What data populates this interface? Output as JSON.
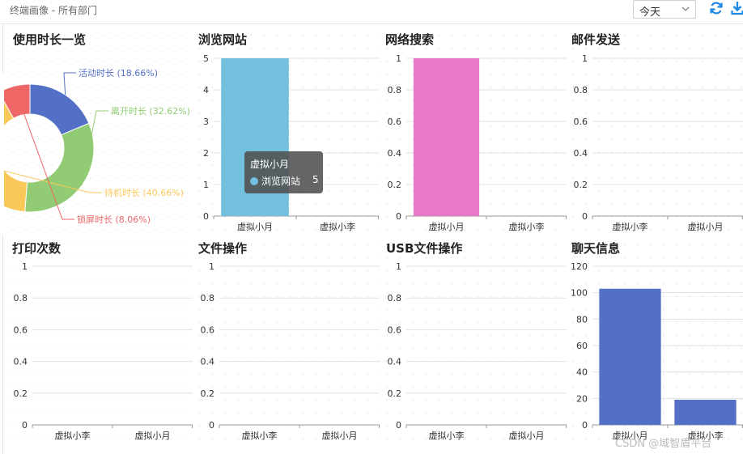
{
  "header": {
    "title": "终端画像 - 所有部门",
    "period_value": "今天"
  },
  "icons": {
    "chevron": "chevron-down-icon",
    "refresh": "refresh-icon",
    "download": "download-icon"
  },
  "colors": {
    "accent_icon": "#1e88e5",
    "blue": "#5470c6",
    "green": "#91cc75",
    "yellow": "#fac858",
    "red": "#ee6666",
    "lightblue": "#73c0de",
    "pink": "#e879c9",
    "grid": "#e0e0e0",
    "axis": "#999999"
  },
  "tooltip": {
    "title": "虚拟小月",
    "series": "浏览网站",
    "value": "5"
  },
  "watermark": "CSDN @域智盾平台",
  "chart_data": [
    {
      "id": "usage",
      "type": "pie",
      "title": "使用时长一览",
      "slices": [
        {
          "name": "活动时长",
          "pct": 18.66,
          "label": "活动时长 (18.66%)",
          "color": "#5470c6"
        },
        {
          "name": "离开时长",
          "pct": 32.62,
          "label": "离开时长 (32.62%)",
          "color": "#91cc75"
        },
        {
          "name": "待机时长",
          "pct": 40.66,
          "label": "待机时长 (40.66%)",
          "color": "#fac858"
        },
        {
          "name": "锁屏时长",
          "pct": 8.06,
          "label": "锁屏时长 (8.06%)",
          "color": "#ee6666"
        }
      ]
    },
    {
      "id": "browse",
      "type": "bar",
      "title": "浏览网站",
      "categories": [
        "虚拟小月",
        "虚拟小李"
      ],
      "values": [
        5,
        0
      ],
      "ylim": [
        0,
        5
      ],
      "yticks": [
        "0",
        "1",
        "2",
        "3",
        "4",
        "5"
      ],
      "color": "#73c0de"
    },
    {
      "id": "search",
      "type": "bar",
      "title": "网络搜索",
      "categories": [
        "虚拟小月",
        "虚拟小李"
      ],
      "values": [
        1,
        0
      ],
      "ylim": [
        0,
        1
      ],
      "yticks": [
        "0",
        "0.2",
        "0.4",
        "0.6",
        "0.8",
        "1"
      ],
      "color": "#e879c9"
    },
    {
      "id": "mail",
      "type": "bar",
      "title": "邮件发送",
      "categories": [
        "虚拟小李",
        "虚拟小月"
      ],
      "values": [
        0,
        0
      ],
      "ylim": [
        0,
        1
      ],
      "yticks": [
        "0",
        "0.2",
        "0.4",
        "0.6",
        "0.8",
        "1"
      ],
      "color": "#5470c6"
    },
    {
      "id": "print",
      "type": "bar",
      "title": "打印次数",
      "categories": [
        "虚拟小李",
        "虚拟小月"
      ],
      "values": [
        0,
        0
      ],
      "ylim": [
        0,
        1
      ],
      "yticks": [
        "0",
        "0.2",
        "0.4",
        "0.6",
        "0.8",
        "1"
      ],
      "color": "#5470c6"
    },
    {
      "id": "fileop",
      "type": "bar",
      "title": "文件操作",
      "categories": [
        "虚拟小李",
        "虚拟小月"
      ],
      "values": [
        0,
        0
      ],
      "ylim": [
        0,
        1
      ],
      "yticks": [
        "0",
        "0.2",
        "0.4",
        "0.6",
        "0.8",
        "1"
      ],
      "color": "#5470c6"
    },
    {
      "id": "usb",
      "type": "bar",
      "title": "USB文件操作",
      "categories": [
        "虚拟小李",
        "虚拟小月"
      ],
      "values": [
        0,
        0
      ],
      "ylim": [
        0,
        1
      ],
      "yticks": [
        "0",
        "0.2",
        "0.4",
        "0.6",
        "0.8",
        "1"
      ],
      "color": "#5470c6"
    },
    {
      "id": "chat",
      "type": "bar",
      "title": "聊天信息",
      "categories": [
        "虚拟小月",
        "虚拟小李"
      ],
      "values": [
        103,
        19
      ],
      "ylim": [
        0,
        120
      ],
      "yticks": [
        "0",
        "20",
        "40",
        "60",
        "80",
        "100",
        "120"
      ],
      "color": "#5470c6"
    }
  ]
}
